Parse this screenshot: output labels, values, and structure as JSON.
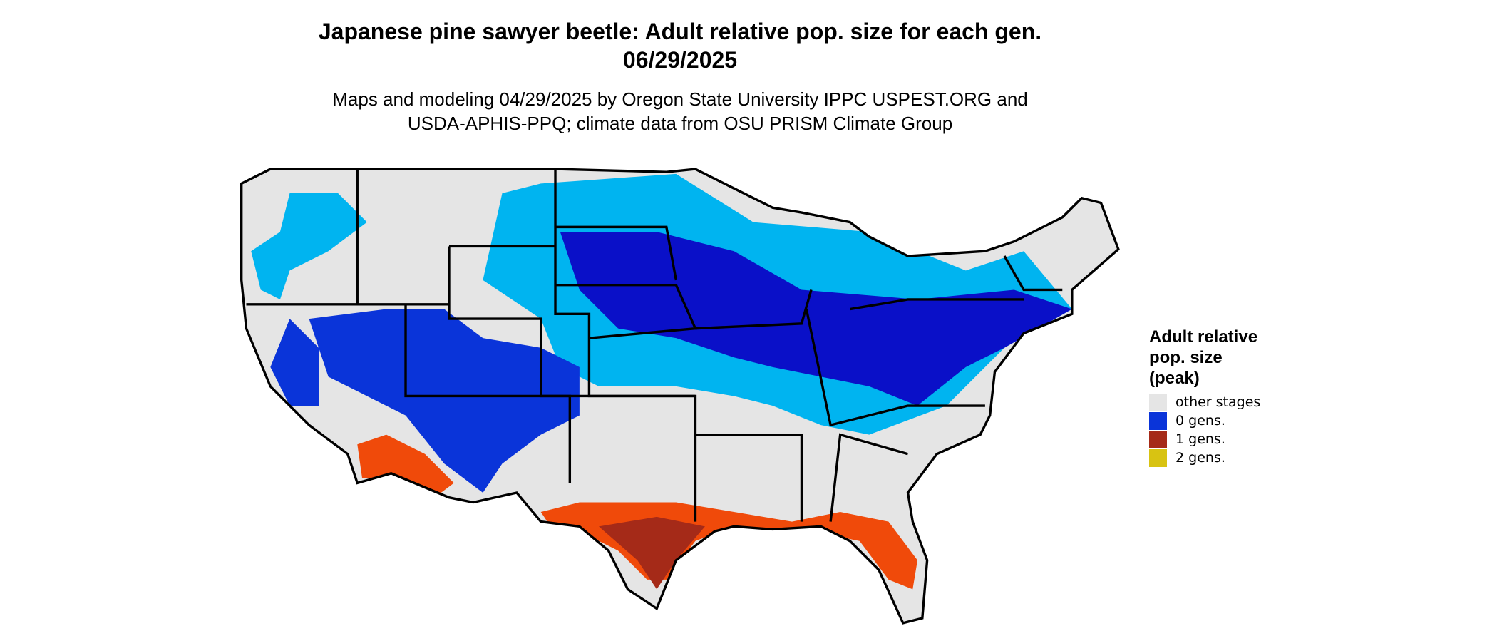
{
  "title": "Japanese pine sawyer beetle: Adult relative pop. size for each gen. 06/29/2025",
  "subtitle": "Maps and modeling 04/29/2025 by Oregon State University IPPC USPEST.ORG and USDA-APHIS-PPQ; climate data from OSU PRISM Climate Group",
  "legend": {
    "title": "Adult relative pop. size (peak)",
    "items": [
      {
        "label": "other stages",
        "color": "#e5e5e5"
      },
      {
        "label": "0 gens.",
        "color": "#0a34d9"
      },
      {
        "label": "1 gens.",
        "color": "#a52a18"
      },
      {
        "label": "2 gens.",
        "color": "#d8c312"
      }
    ]
  }
}
